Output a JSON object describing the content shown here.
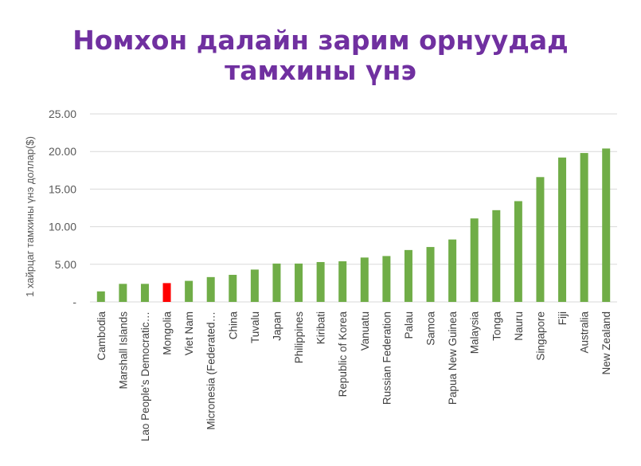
{
  "chart_data": {
    "type": "bar",
    "title_lines": [
      "Номхон далайн зарим орнуудад",
      "тамхины үнэ"
    ],
    "ylabel": "1 хайрцаг тамхины үнэ  доллар($)",
    "xlabel": "",
    "ylim": [
      0,
      25
    ],
    "yticks": [
      "-",
      "5.00",
      "10.00",
      "15.00",
      "20.00",
      "25.00"
    ],
    "ytick_values": [
      0,
      5,
      10,
      15,
      20,
      25
    ],
    "grid": true,
    "categories": [
      "Cambodia",
      "Marshall Islands",
      "Lao People's Democratic Republic",
      "Mongolia",
      "Viet Nam",
      "Micronesia (Federated States of)",
      "China",
      "Tuvalu",
      "Japan",
      "Philippines",
      "Kiribati",
      "Republic of Korea",
      "Vanuatu",
      "Russian Federation",
      "Palau",
      "Samoa",
      "Papua New Guinea",
      "Malaysia",
      "Tonga",
      "Nauru",
      "Singapore",
      "Fiji",
      "Australia",
      "New Zealand"
    ],
    "category_display": [
      "Cambodia",
      "Marshall Islands",
      "Lao People's Democratic…",
      "Mongolia",
      "Viet Nam",
      "Micronesia (Federated…",
      "China",
      "Tuvalu",
      "Japan",
      "Philippines",
      "Kiribati",
      "Republic of Korea",
      "Vanuatu",
      "Russian Federation",
      "Palau",
      "Samoa",
      "Papua New Guinea",
      "Malaysia",
      "Tonga",
      "Nauru",
      "Singapore",
      "Fiji",
      "Australia",
      "New Zealand"
    ],
    "values": [
      1.4,
      2.4,
      2.4,
      2.5,
      2.8,
      3.3,
      3.6,
      4.3,
      5.1,
      5.1,
      5.3,
      5.4,
      5.9,
      6.1,
      6.9,
      7.3,
      8.3,
      11.1,
      12.2,
      13.4,
      16.6,
      19.2,
      19.8,
      20.4
    ],
    "highlight": "Mongolia",
    "colors": {
      "bar": "#70ad47",
      "highlight": "#ff0000",
      "title": "#7030a0",
      "grid": "#d9d9d9"
    }
  }
}
